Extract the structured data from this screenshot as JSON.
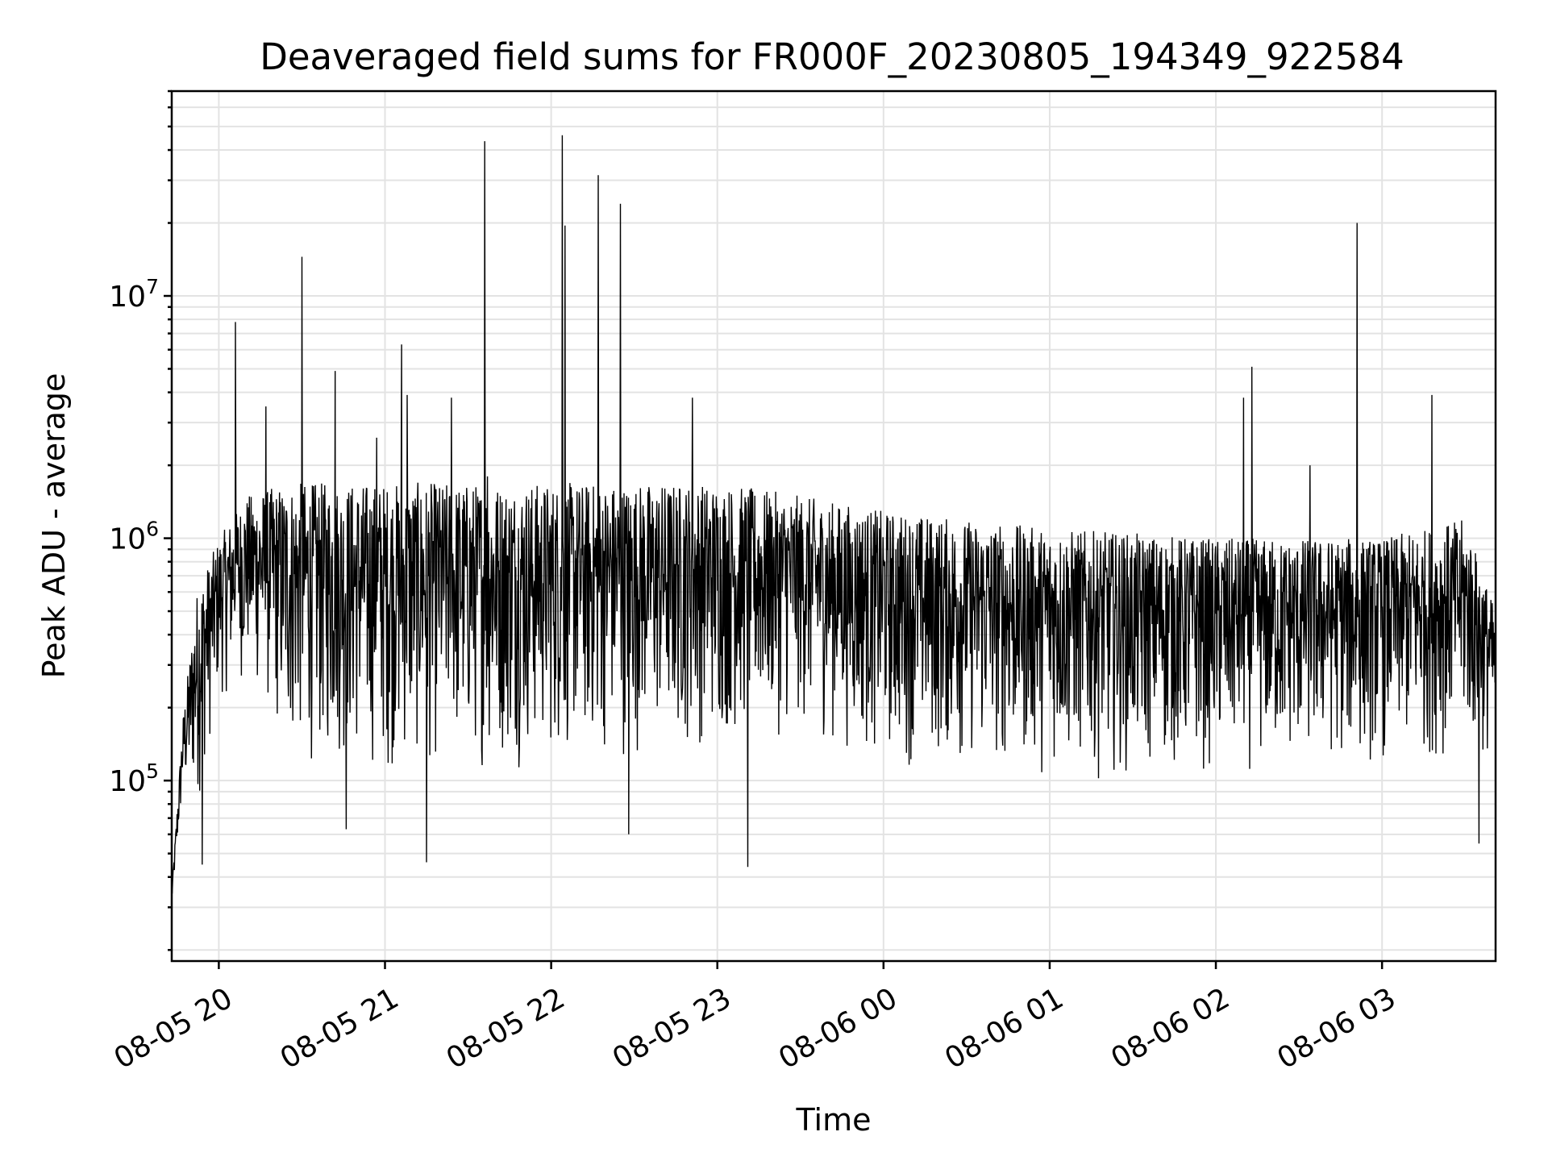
{
  "chart_data": {
    "type": "line",
    "title": "Deaveraged field sums for FR000F_20230805_194349_922584",
    "xlabel": "Time",
    "ylabel": "Peak ADU - average",
    "yscale": "log",
    "ylim": [
      18000,
      70000000
    ],
    "xlim": [
      "2023-08-05 19:43",
      "2023-08-06 03:41"
    ],
    "grid": true,
    "x_ticks": [
      {
        "value": "2023-08-05 20:00",
        "label": "08-05 20"
      },
      {
        "value": "2023-08-05 21:00",
        "label": "08-05 21"
      },
      {
        "value": "2023-08-05 22:00",
        "label": "08-05 22"
      },
      {
        "value": "2023-08-05 23:00",
        "label": "08-05 23"
      },
      {
        "value": "2023-08-06 00:00",
        "label": "08-06 00"
      },
      {
        "value": "2023-08-06 01:00",
        "label": "08-06 01"
      },
      {
        "value": "2023-08-06 02:00",
        "label": "08-06 02"
      },
      {
        "value": "2023-08-06 03:00",
        "label": "08-06 03"
      }
    ],
    "y_ticks": [
      {
        "value": 100000,
        "base": "10",
        "exp": "5"
      },
      {
        "value": 1000000,
        "base": "10",
        "exp": "6"
      },
      {
        "value": 10000000,
        "base": "10",
        "exp": "7"
      }
    ],
    "series": [
      {
        "color": "#000000",
        "band": [
          {
            "t": "2023-08-05 19:43",
            "lo": 30000,
            "hi": 35000
          },
          {
            "t": "2023-08-05 19:47",
            "lo": 80000,
            "hi": 180000
          },
          {
            "t": "2023-08-05 19:52",
            "lo": 70000,
            "hi": 600000
          },
          {
            "t": "2023-08-05 20:00",
            "lo": 200000,
            "hi": 1000000
          },
          {
            "t": "2023-08-05 20:10",
            "lo": 250000,
            "hi": 1500000
          },
          {
            "t": "2023-08-05 20:25",
            "lo": 110000,
            "hi": 1700000
          },
          {
            "t": "2023-08-05 21:00",
            "lo": 100000,
            "hi": 1700000
          },
          {
            "t": "2023-08-05 22:00",
            "lo": 110000,
            "hi": 1700000
          },
          {
            "t": "2023-08-05 23:00",
            "lo": 130000,
            "hi": 1700000
          },
          {
            "t": "2023-08-05 23:30",
            "lo": 150000,
            "hi": 1500000
          },
          {
            "t": "2023-08-06 00:00",
            "lo": 110000,
            "hi": 1300000
          },
          {
            "t": "2023-08-06 01:00",
            "lo": 100000,
            "hi": 1100000
          },
          {
            "t": "2023-08-06 02:00",
            "lo": 100000,
            "hi": 1000000
          },
          {
            "t": "2023-08-06 03:00",
            "lo": 110000,
            "hi": 1000000
          },
          {
            "t": "2023-08-06 03:30",
            "lo": 120000,
            "hi": 1200000
          },
          {
            "t": "2023-08-06 03:41",
            "lo": 110000,
            "hi": 500000
          }
        ],
        "spikes": [
          {
            "t": "2023-08-05 19:54",
            "v": 45000
          },
          {
            "t": "2023-08-05 20:06",
            "v": 7800000
          },
          {
            "t": "2023-08-05 20:17",
            "v": 3500000
          },
          {
            "t": "2023-08-05 20:30",
            "v": 14500000
          },
          {
            "t": "2023-08-05 20:42",
            "v": 4900000
          },
          {
            "t": "2023-08-05 20:46",
            "v": 63000
          },
          {
            "t": "2023-08-05 20:57",
            "v": 2600000
          },
          {
            "t": "2023-08-05 21:06",
            "v": 6300000
          },
          {
            "t": "2023-08-05 21:08",
            "v": 3900000
          },
          {
            "t": "2023-08-05 21:15",
            "v": 46000
          },
          {
            "t": "2023-08-05 21:24",
            "v": 3800000
          },
          {
            "t": "2023-08-05 21:36",
            "v": 43500000
          },
          {
            "t": "2023-08-05 21:37",
            "v": 1800000
          },
          {
            "t": "2023-08-05 22:04",
            "v": 46000000
          },
          {
            "t": "2023-08-05 22:05",
            "v": 19500000
          },
          {
            "t": "2023-08-05 22:17",
            "v": 31500000
          },
          {
            "t": "2023-08-05 22:25",
            "v": 24000000
          },
          {
            "t": "2023-08-05 22:28",
            "v": 60000
          },
          {
            "t": "2023-08-05 22:51",
            "v": 3800000
          },
          {
            "t": "2023-08-05 23:11",
            "v": 44000
          },
          {
            "t": "2023-08-06 02:10",
            "v": 3800000
          },
          {
            "t": "2023-08-06 02:13",
            "v": 5100000
          },
          {
            "t": "2023-08-06 02:34",
            "v": 2000000
          },
          {
            "t": "2023-08-06 02:51",
            "v": 20000000
          },
          {
            "t": "2023-08-06 03:18",
            "v": 3900000
          },
          {
            "t": "2023-08-06 03:35",
            "v": 55000
          }
        ]
      }
    ]
  }
}
